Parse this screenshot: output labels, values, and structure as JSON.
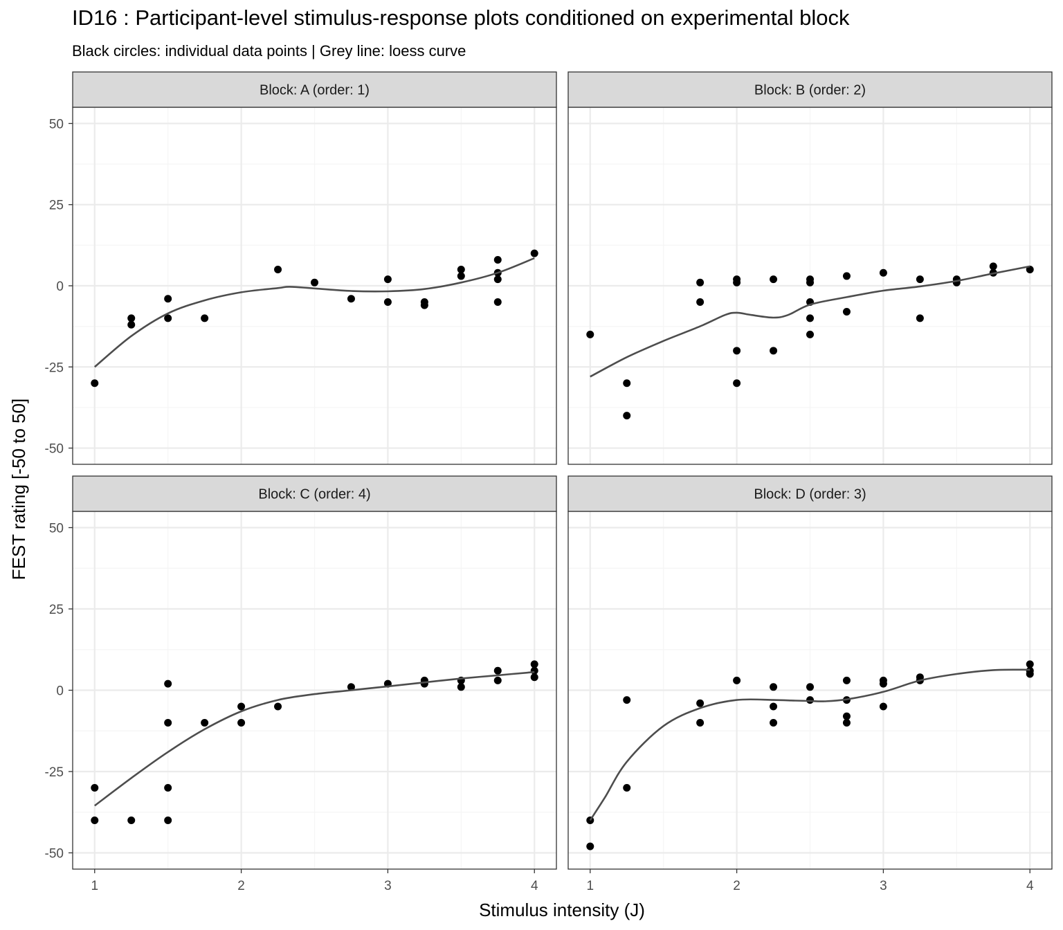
{
  "chart_data": {
    "type": "scatter",
    "title": "ID16 : Participant-level stimulus-response plots conditioned on experimental block",
    "subtitle": "Black circles: individual data points | Grey line: loess curve",
    "xlabel": "Stimulus intensity (J)",
    "ylabel": "FEST rating [-50 to 50]",
    "xlim": [
      0.85,
      4.15
    ],
    "ylim": [
      -55,
      55
    ],
    "x_ticks": [
      1,
      2,
      3,
      4
    ],
    "x_tick_labels": [
      "1",
      "2",
      "3",
      "4"
    ],
    "y_ticks": [
      50,
      25,
      0,
      -25,
      -50
    ],
    "y_tick_labels": [
      "50",
      "25",
      "0",
      "-25",
      "-50"
    ],
    "grid": true,
    "colors": {
      "points": "#000000",
      "loess": "#4d4d4d",
      "strip_fill": "#d9d9d9",
      "grid_major": "#ebebeb",
      "grid_minor": "#f5f5f5",
      "panel_border": "#333333"
    },
    "panels": [
      {
        "label": "Block: A (order: 1)",
        "points": [
          [
            1,
            -30
          ],
          [
            1.25,
            -10
          ],
          [
            1.25,
            -12
          ],
          [
            1.5,
            -4
          ],
          [
            1.5,
            -10
          ],
          [
            1.75,
            -10
          ],
          [
            2.25,
            5
          ],
          [
            2.5,
            1
          ],
          [
            2.75,
            -4
          ],
          [
            3,
            2
          ],
          [
            3,
            -5
          ],
          [
            3.25,
            -5
          ],
          [
            3.25,
            -6
          ],
          [
            3.5,
            5
          ],
          [
            3.5,
            3
          ],
          [
            3.75,
            8
          ],
          [
            3.75,
            4
          ],
          [
            3.75,
            2
          ],
          [
            3.75,
            -5
          ],
          [
            4,
            10
          ]
        ],
        "loess": [
          [
            1,
            -25
          ],
          [
            1.25,
            -15.5
          ],
          [
            1.5,
            -8.5
          ],
          [
            1.75,
            -4.5
          ],
          [
            2,
            -2
          ],
          [
            2.25,
            -0.7
          ],
          [
            2.33,
            -0.3
          ],
          [
            2.5,
            -0.8
          ],
          [
            2.75,
            -1.6
          ],
          [
            3,
            -1.7
          ],
          [
            3.25,
            -1
          ],
          [
            3.5,
            1
          ],
          [
            3.75,
            4
          ],
          [
            4,
            8.5
          ]
        ]
      },
      {
        "label": "Block: B (order: 2)",
        "points": [
          [
            1,
            -15
          ],
          [
            1.25,
            -30
          ],
          [
            1.25,
            -40
          ],
          [
            1.75,
            1
          ],
          [
            1.75,
            -5
          ],
          [
            2,
            2
          ],
          [
            2,
            1
          ],
          [
            2,
            -20
          ],
          [
            2,
            -30
          ],
          [
            2.25,
            2
          ],
          [
            2.25,
            -20
          ],
          [
            2.5,
            2
          ],
          [
            2.5,
            1
          ],
          [
            2.5,
            -5
          ],
          [
            2.5,
            -10
          ],
          [
            2.5,
            -15
          ],
          [
            2.75,
            3
          ],
          [
            2.75,
            -8
          ],
          [
            3,
            4
          ],
          [
            3.25,
            2
          ],
          [
            3.25,
            -10
          ],
          [
            3.5,
            2
          ],
          [
            3.5,
            1
          ],
          [
            3.75,
            6
          ],
          [
            3.75,
            4
          ],
          [
            4,
            5
          ]
        ],
        "loess": [
          [
            1,
            -28
          ],
          [
            1.25,
            -22
          ],
          [
            1.5,
            -17
          ],
          [
            1.75,
            -12.5
          ],
          [
            1.92,
            -9
          ],
          [
            2,
            -8.3
          ],
          [
            2.1,
            -9
          ],
          [
            2.25,
            -9.8
          ],
          [
            2.35,
            -9
          ],
          [
            2.5,
            -5.8
          ],
          [
            2.75,
            -3.5
          ],
          [
            3,
            -1.5
          ],
          [
            3.25,
            -0.2
          ],
          [
            3.5,
            1.5
          ],
          [
            3.75,
            3.8
          ],
          [
            4,
            6
          ]
        ]
      },
      {
        "label": "Block: C (order: 4)",
        "points": [
          [
            1,
            -30
          ],
          [
            1,
            -40
          ],
          [
            1.25,
            -40
          ],
          [
            1.5,
            2
          ],
          [
            1.5,
            -10
          ],
          [
            1.5,
            -30
          ],
          [
            1.5,
            -40
          ],
          [
            1.75,
            -10
          ],
          [
            2,
            -5
          ],
          [
            2,
            -10
          ],
          [
            2.25,
            -5
          ],
          [
            2.75,
            1
          ],
          [
            3,
            2
          ],
          [
            3.25,
            3
          ],
          [
            3.25,
            2
          ],
          [
            3.5,
            3
          ],
          [
            3.5,
            1
          ],
          [
            3.75,
            6
          ],
          [
            3.75,
            3
          ],
          [
            4,
            8
          ],
          [
            4,
            6
          ],
          [
            4,
            4
          ]
        ],
        "loess": [
          [
            1,
            -35.5
          ],
          [
            1.25,
            -27
          ],
          [
            1.5,
            -19
          ],
          [
            1.75,
            -12
          ],
          [
            2,
            -6.5
          ],
          [
            2.25,
            -3
          ],
          [
            2.5,
            -1.2
          ],
          [
            2.75,
            0
          ],
          [
            3,
            1.2
          ],
          [
            3.25,
            2.4
          ],
          [
            3.5,
            3.6
          ],
          [
            3.75,
            4.6
          ],
          [
            4,
            5.6
          ]
        ]
      },
      {
        "label": "Block: D (order: 3)",
        "points": [
          [
            1,
            -40
          ],
          [
            1,
            -48
          ],
          [
            1.25,
            -3
          ],
          [
            1.25,
            -30
          ],
          [
            1.75,
            -4
          ],
          [
            1.75,
            -10
          ],
          [
            2,
            3
          ],
          [
            2.25,
            1
          ],
          [
            2.25,
            -5
          ],
          [
            2.25,
            -10
          ],
          [
            2.5,
            1
          ],
          [
            2.5,
            -3
          ],
          [
            2.75,
            3
          ],
          [
            2.75,
            -3
          ],
          [
            2.75,
            -8
          ],
          [
            2.75,
            -10
          ],
          [
            3,
            3
          ],
          [
            3,
            2
          ],
          [
            3,
            -5
          ],
          [
            3.25,
            4
          ],
          [
            3.25,
            3
          ],
          [
            4,
            8
          ],
          [
            4,
            6
          ],
          [
            4,
            5
          ]
        ],
        "loess": [
          [
            1,
            -40
          ],
          [
            1.1,
            -33
          ],
          [
            1.25,
            -22
          ],
          [
            1.5,
            -11
          ],
          [
            1.75,
            -5.5
          ],
          [
            2,
            -3
          ],
          [
            2.25,
            -3
          ],
          [
            2.4,
            -3.2
          ],
          [
            2.5,
            -3.3
          ],
          [
            2.6,
            -3.4
          ],
          [
            2.75,
            -2.8
          ],
          [
            3,
            -0.5
          ],
          [
            3.25,
            3
          ],
          [
            3.5,
            5
          ],
          [
            3.75,
            6.2
          ],
          [
            4,
            6.3
          ]
        ]
      }
    ]
  }
}
